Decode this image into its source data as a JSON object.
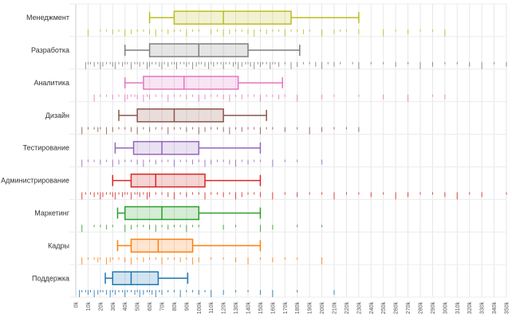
{
  "chart_data": {
    "type": "boxplot",
    "orientation": "horizontal",
    "title": "",
    "xlabel": "",
    "ylabel": "",
    "xlim": [
      0,
      350
    ],
    "x_unit_suffix": "k",
    "x_ticks": [
      "0k",
      "10k",
      "20k",
      "30k",
      "40k",
      "50k",
      "60k",
      "70k",
      "80k",
      "90k",
      "100k",
      "110k",
      "120k",
      "130k",
      "140k",
      "150k",
      "160k",
      "170k",
      "180k",
      "190k",
      "200k",
      "210k",
      "220k",
      "230k",
      "240k",
      "250k",
      "260k",
      "270k",
      "280k",
      "290k",
      "300k",
      "310k",
      "320k",
      "330k",
      "340k",
      "350k"
    ],
    "grid": true,
    "categories": [
      "Менеджмент",
      "Разработка",
      "Аналитика",
      "Дизайн",
      "Тестирование",
      "Администрирование",
      "Маркетинг",
      "Кадры",
      "Поддержка"
    ],
    "series": [
      {
        "name": "Менеджмент",
        "color": "#bcbd22",
        "min": 60,
        "q1": 80,
        "median": 120,
        "q3": 175,
        "max": 230,
        "rug": [
          10,
          20,
          25,
          30,
          35,
          40,
          45,
          50,
          55,
          60,
          65,
          70,
          75,
          80,
          85,
          90,
          95,
          100,
          110,
          115,
          120,
          125,
          130,
          135,
          140,
          145,
          150,
          155,
          160,
          165,
          170,
          175,
          180,
          185,
          190,
          200,
          210,
          215,
          220,
          230,
          250,
          260,
          270,
          280,
          290,
          300
        ]
      },
      {
        "name": "Разработка",
        "color": "#7f7f7f",
        "min": 40,
        "q1": 60,
        "median": 100,
        "q3": 140,
        "max": 182,
        "rug": [
          8,
          10,
          12,
          15,
          18,
          20,
          22,
          25,
          28,
          30,
          32,
          35,
          38,
          40,
          42,
          45,
          48,
          50,
          52,
          55,
          58,
          60,
          62,
          65,
          68,
          70,
          72,
          75,
          78,
          80,
          82,
          85,
          88,
          90,
          92,
          95,
          98,
          100,
          102,
          105,
          108,
          110,
          112,
          115,
          118,
          120,
          122,
          125,
          128,
          130,
          132,
          135,
          138,
          140,
          142,
          145,
          148,
          150,
          152,
          155,
          158,
          160,
          162,
          165,
          170,
          175,
          180,
          185,
          190,
          195,
          200,
          205,
          210,
          215,
          225,
          230,
          240,
          250,
          260,
          270,
          280,
          290,
          300,
          310,
          320,
          330,
          340,
          350
        ]
      },
      {
        "name": "Аналитика",
        "color": "#e377c2",
        "min": 40,
        "q1": 55,
        "median": 88,
        "q3": 132,
        "max": 168,
        "rug": [
          15,
          20,
          25,
          30,
          35,
          40,
          42,
          45,
          48,
          50,
          55,
          58,
          60,
          65,
          70,
          75,
          80,
          85,
          90,
          95,
          100,
          105,
          110,
          115,
          120,
          125,
          130,
          135,
          140,
          145,
          150,
          155,
          160,
          165,
          170,
          180,
          200,
          210,
          230,
          250,
          270,
          290,
          300
        ]
      },
      {
        "name": "Дизайн",
        "color": "#8c564b",
        "min": 35,
        "q1": 50,
        "median": 80,
        "q3": 120,
        "max": 155,
        "rug": [
          5,
          10,
          15,
          18,
          20,
          25,
          30,
          35,
          40,
          45,
          50,
          55,
          60,
          65,
          70,
          75,
          80,
          85,
          90,
          95,
          100,
          105,
          110,
          115,
          120,
          125,
          130,
          135,
          140,
          145,
          150,
          155,
          160,
          170,
          180,
          190,
          200,
          210,
          220,
          230
        ]
      },
      {
        "name": "Тестирование",
        "color": "#9467bd",
        "min": 32,
        "q1": 47,
        "median": 70,
        "q3": 100,
        "max": 150,
        "rug": [
          5,
          10,
          15,
          20,
          25,
          30,
          35,
          40,
          45,
          50,
          55,
          60,
          65,
          70,
          75,
          80,
          85,
          90,
          95,
          100,
          105,
          110,
          115,
          120,
          125,
          130,
          135,
          140,
          145,
          150,
          160,
          170,
          180,
          200
        ]
      },
      {
        "name": "Администрирование",
        "color": "#d62728",
        "min": 30,
        "q1": 45,
        "median": 65,
        "q3": 105,
        "max": 150,
        "rug": [
          5,
          8,
          12,
          15,
          18,
          20,
          22,
          25,
          28,
          30,
          32,
          35,
          38,
          40,
          42,
          45,
          48,
          50,
          52,
          55,
          58,
          60,
          65,
          70,
          75,
          80,
          85,
          90,
          95,
          100,
          105,
          110,
          115,
          120,
          125,
          130,
          135,
          140,
          145,
          150,
          160,
          170,
          180,
          190,
          200,
          210,
          220,
          230,
          240,
          250,
          260,
          270,
          280,
          290,
          300,
          310,
          320,
          330,
          350
        ]
      },
      {
        "name": "Маркетинг",
        "color": "#2ca02c",
        "min": 34,
        "q1": 40,
        "median": 70,
        "q3": 100,
        "max": 150,
        "rug": [
          5,
          15,
          20,
          25,
          30,
          40,
          45,
          50,
          55,
          60,
          65,
          70,
          75,
          80,
          85,
          90,
          95,
          100,
          120,
          130,
          150,
          160,
          180,
          200
        ]
      },
      {
        "name": "Кадры",
        "color": "#ff7f0e",
        "min": 34,
        "q1": 45,
        "median": 67,
        "q3": 95,
        "max": 150,
        "rug": [
          5,
          10,
          15,
          18,
          20,
          25,
          28,
          30,
          35,
          40,
          45,
          50,
          55,
          60,
          65,
          70,
          75,
          80,
          85,
          90,
          95,
          100,
          110,
          120,
          130,
          140,
          150,
          160,
          170,
          180,
          200
        ]
      },
      {
        "name": "Поддержка",
        "color": "#1f77b4",
        "min": 24,
        "q1": 30,
        "median": 45,
        "q3": 67,
        "max": 91,
        "rug": [
          3,
          5,
          8,
          10,
          12,
          15,
          18,
          20,
          22,
          25,
          28,
          30,
          32,
          35,
          38,
          40,
          42,
          45,
          48,
          50,
          52,
          55,
          58,
          60,
          62,
          65,
          68,
          70,
          75,
          80,
          85,
          90,
          95,
          100,
          105,
          110,
          120,
          130,
          140,
          150,
          160,
          180,
          210
        ]
      }
    ]
  }
}
